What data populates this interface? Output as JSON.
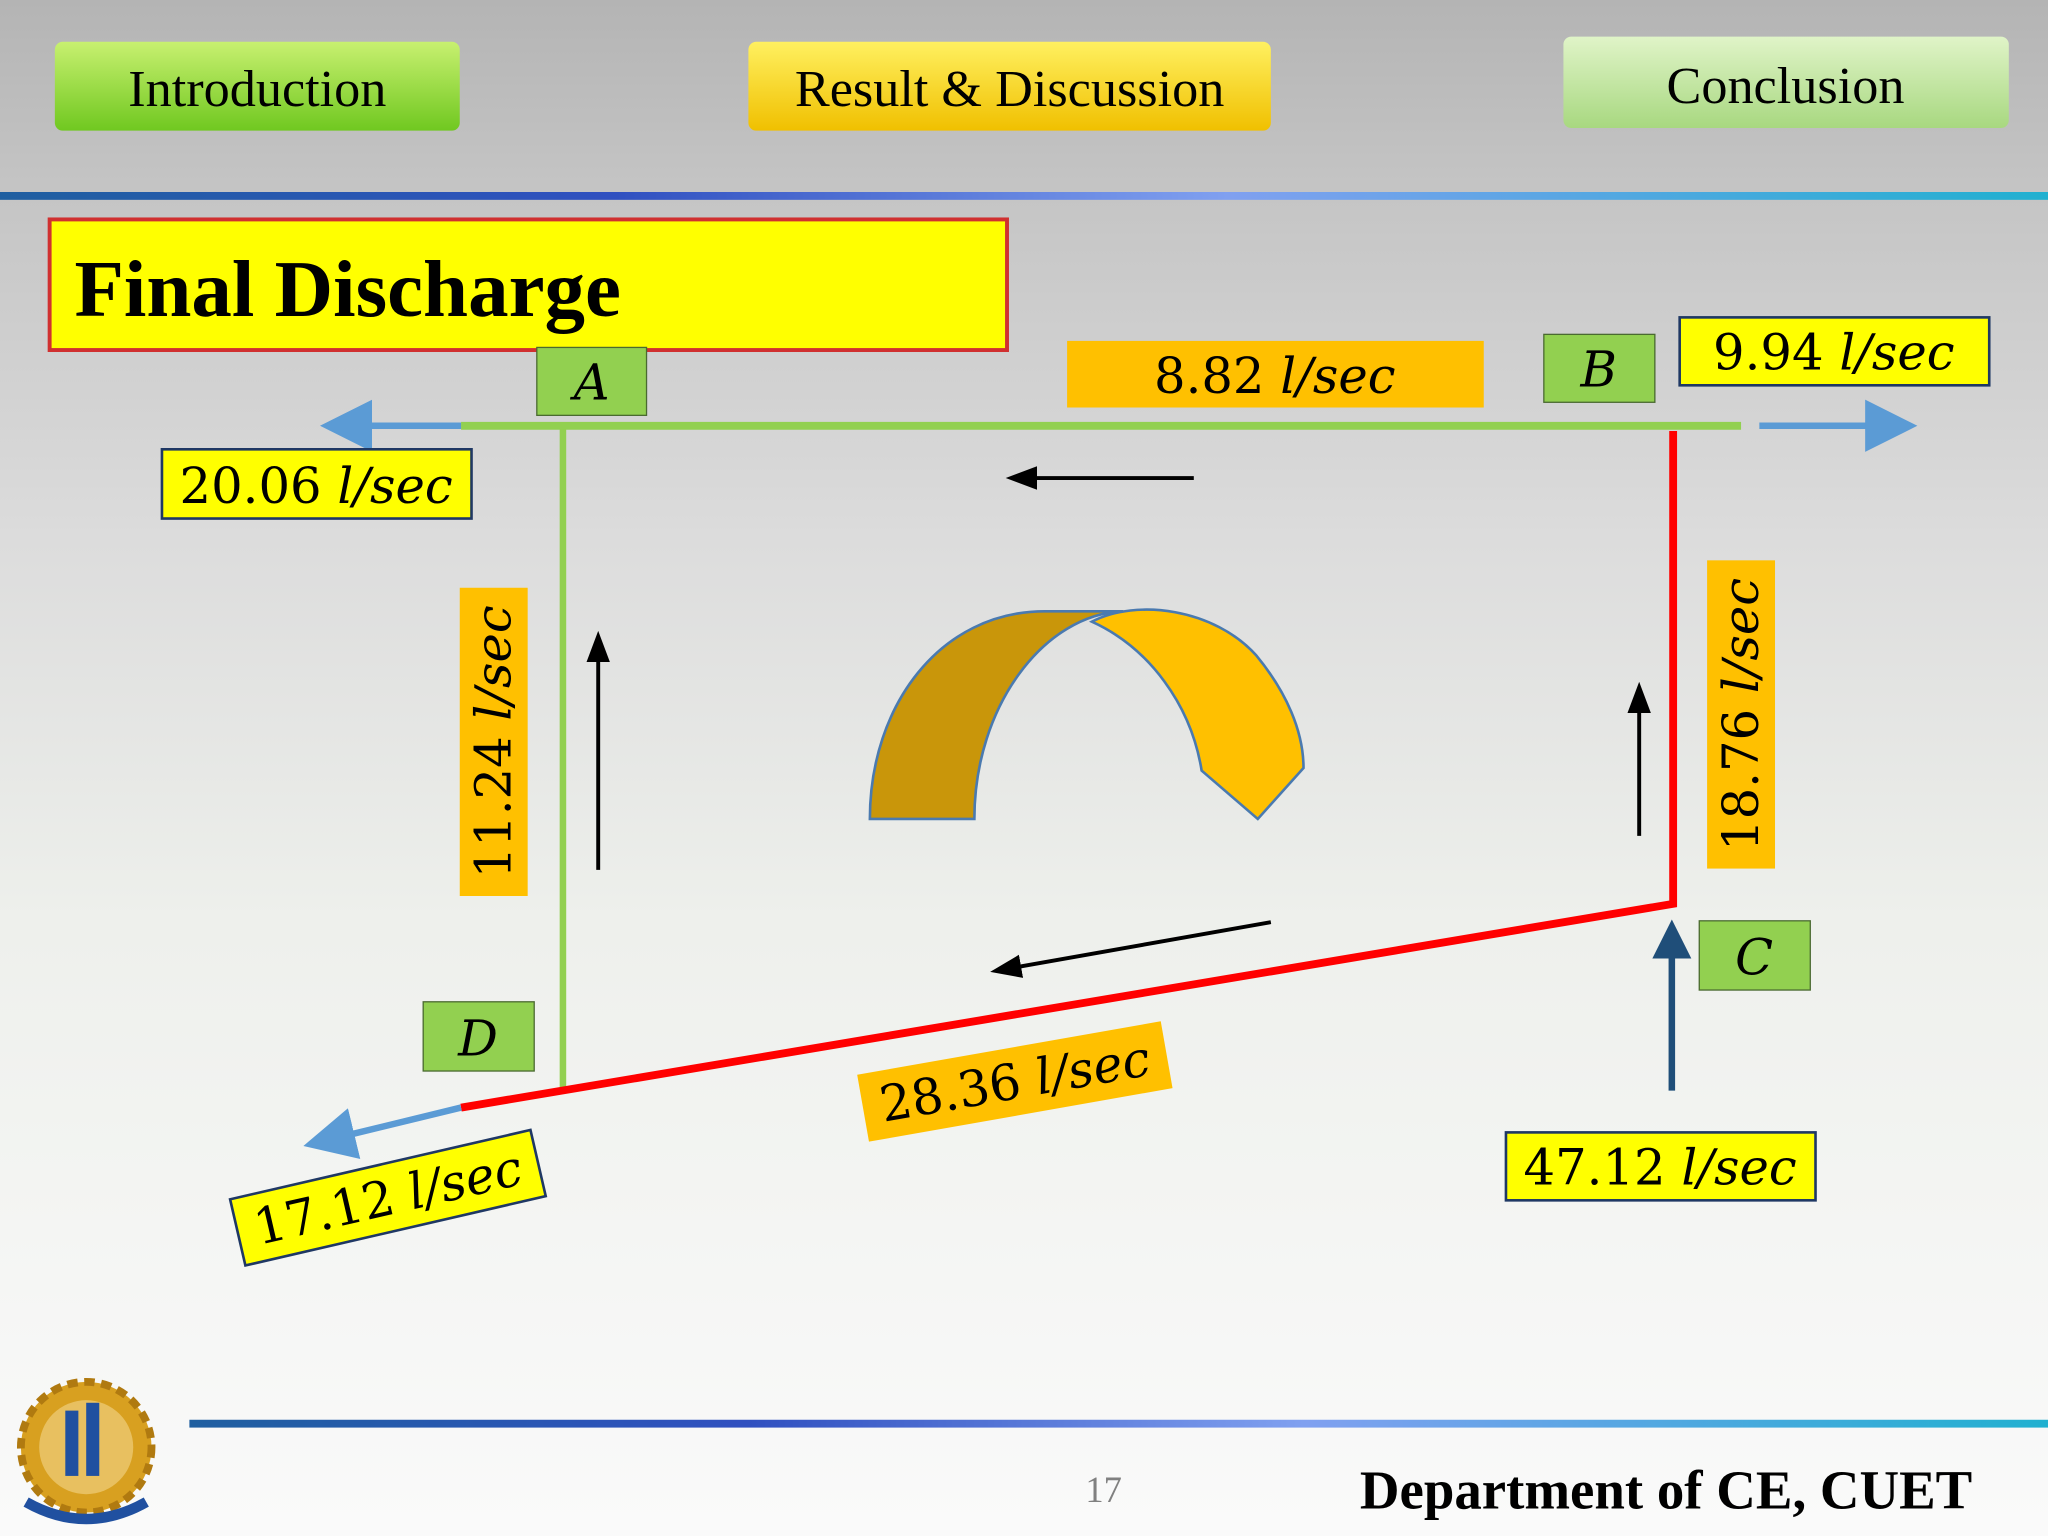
{
  "nav": [
    "Introduction",
    "Result & Discussion",
    "Conclusion"
  ],
  "title": "Final Discharge",
  "nodes": [
    "A",
    "B",
    "C",
    "D"
  ],
  "flows": [
    {
      "value": "8.82",
      "unit": "l/sec"
    },
    {
      "value": "9.94",
      "unit": "l/sec"
    },
    {
      "value": "20.06",
      "unit": "l/sec"
    },
    {
      "value": "11.24",
      "unit": "l/sec"
    },
    {
      "value": "18.76",
      "unit": "l/sec"
    },
    {
      "value": "28.36",
      "unit": "l/sec"
    },
    {
      "value": "17.12",
      "unit": "l/sec"
    },
    {
      "value": "47.12",
      "unit": "l/sec"
    }
  ],
  "footer": {
    "page": "17",
    "department": "Department of CE, CUET"
  }
}
